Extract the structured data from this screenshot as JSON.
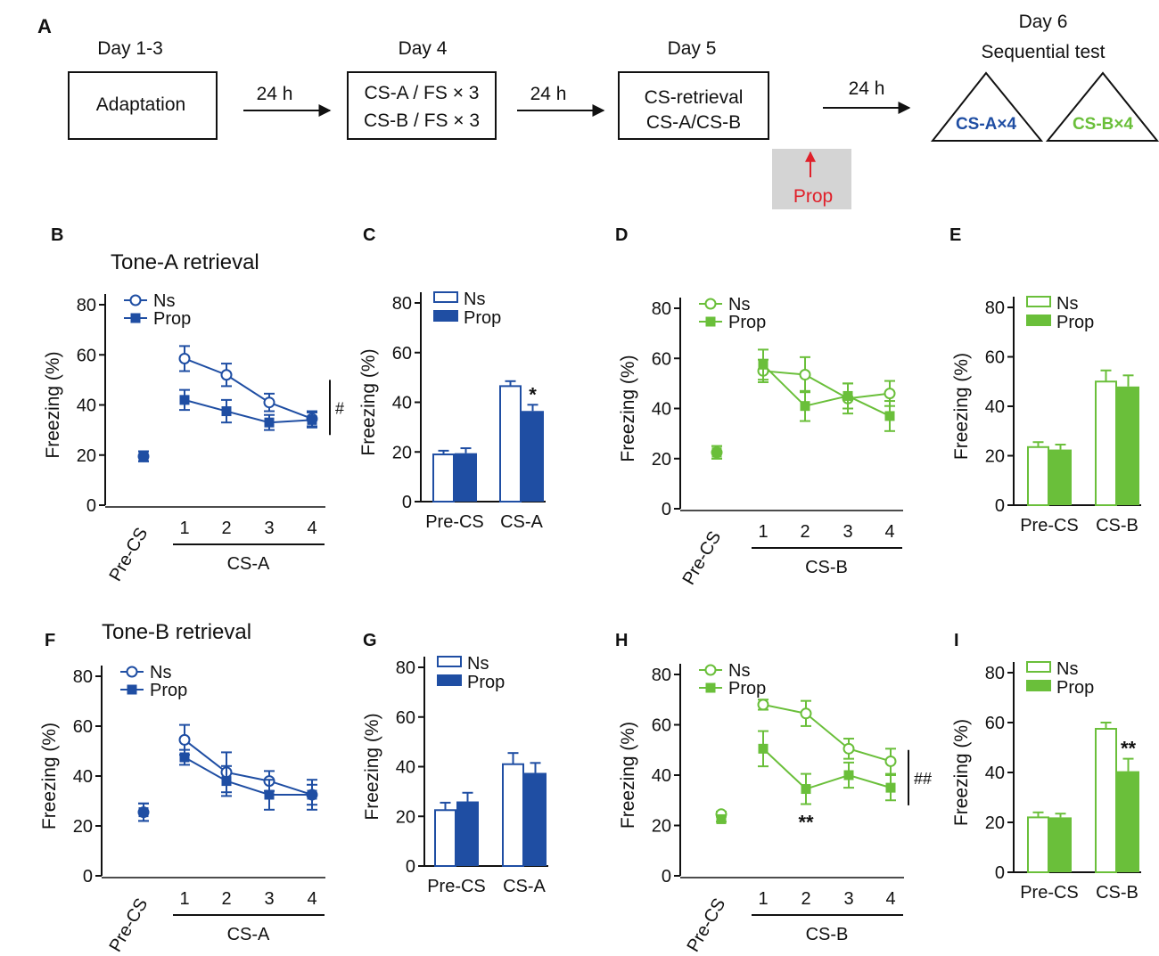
{
  "colors": {
    "blue": "#1f4ea3",
    "green": "#6abf3a",
    "red": "#e0202a",
    "grey_box": "#d4d4d4",
    "black": "#111111"
  },
  "schematic": {
    "panel_label": "A",
    "days": {
      "d13": "Day 1-3",
      "d4": "Day 4",
      "d5": "Day 5",
      "d6": "Day 6"
    },
    "boxes": {
      "adaptation": "Adaptation",
      "d4_line1": "CS-A / FS × 3",
      "d4_line2": "CS-B / FS × 3",
      "d5_line1": "CS-retrieval",
      "d5_line2": "CS-A/CS-B"
    },
    "intervals": [
      "24 h",
      "24 h",
      "24 h"
    ],
    "drug": "Prop",
    "test_title": "Sequential test",
    "test_a": "CS-A×4",
    "test_b": "CS-B×4"
  },
  "rows": {
    "tone_a": "Tone-A retrieval",
    "tone_b": "Tone-B retrieval"
  },
  "chart_data": [
    {
      "panel": "B",
      "type": "line",
      "title": "Tone-A retrieval",
      "ylabel": "Freezing (%)",
      "ylim": [
        0,
        80
      ],
      "yticks": [
        0,
        20,
        40,
        60,
        80
      ],
      "precs_label": "Pre-CS",
      "categories": [
        "1",
        "2",
        "3",
        "4"
      ],
      "group_label": "CS-A",
      "color": "blue",
      "sig": "#",
      "trial_marks": [],
      "series": [
        {
          "name": "Ns",
          "marker": "open-circle",
          "pre": 19.5,
          "pre_err": 2,
          "values": [
            58.5,
            52,
            41,
            34.5
          ],
          "errors": [
            5,
            4.5,
            3.5,
            3
          ]
        },
        {
          "name": "Prop",
          "marker": "filled-square",
          "pre": 19.5,
          "pre_err": 2,
          "values": [
            42,
            37.5,
            33,
            34
          ],
          "errors": [
            4,
            4.5,
            3,
            3
          ]
        }
      ]
    },
    {
      "panel": "C",
      "type": "bar",
      "ylabel": "Freezing (%)",
      "ylim": [
        0,
        80
      ],
      "yticks": [
        0,
        20,
        40,
        60,
        80
      ],
      "categories": [
        "Pre-CS",
        "CS-A"
      ],
      "color": "blue",
      "series": [
        {
          "name": "Ns",
          "style": "open",
          "values": [
            19,
            46.5
          ],
          "errors": [
            1.5,
            2
          ]
        },
        {
          "name": "Prop",
          "style": "filled",
          "values": [
            19.5,
            36.5
          ],
          "errors": [
            2,
            2.5
          ]
        }
      ],
      "stars": [
        "",
        "*"
      ]
    },
    {
      "panel": "D",
      "type": "line",
      "ylabel": "Freezing (%)",
      "ylim": [
        0,
        80
      ],
      "yticks": [
        0,
        20,
        40,
        60,
        80
      ],
      "precs_label": "Pre-CS",
      "categories": [
        "1",
        "2",
        "3",
        "4"
      ],
      "group_label": "CS-B",
      "color": "green",
      "sig": "",
      "trial_marks": [],
      "series": [
        {
          "name": "Ns",
          "marker": "open-circle",
          "pre": 22.5,
          "pre_err": 2.5,
          "values": [
            55,
            53.5,
            44,
            46
          ],
          "errors": [
            4.5,
            7,
            6,
            5
          ]
        },
        {
          "name": "Prop",
          "marker": "filled-square",
          "pre": 22.5,
          "pre_err": 2.5,
          "values": [
            57.5,
            41,
            45,
            37
          ],
          "errors": [
            6,
            6,
            5,
            6
          ]
        }
      ]
    },
    {
      "panel": "E",
      "type": "bar",
      "ylabel": "Freezing (%)",
      "ylim": [
        0,
        80
      ],
      "yticks": [
        0,
        20,
        40,
        60,
        80
      ],
      "categories": [
        "Pre-CS",
        "CS-B"
      ],
      "color": "green",
      "series": [
        {
          "name": "Ns",
          "style": "open",
          "values": [
            23.5,
            50
          ],
          "errors": [
            2,
            4.5
          ]
        },
        {
          "name": "Prop",
          "style": "filled",
          "values": [
            22.5,
            48
          ],
          "errors": [
            2,
            4.5
          ]
        }
      ],
      "stars": [
        "",
        ""
      ]
    },
    {
      "panel": "F",
      "type": "line",
      "title": "Tone-B retrieval",
      "ylabel": "Freezing (%)",
      "ylim": [
        0,
        80
      ],
      "yticks": [
        0,
        20,
        40,
        60,
        80
      ],
      "precs_label": "Pre-CS",
      "categories": [
        "1",
        "2",
        "3",
        "4"
      ],
      "group_label": "CS-A",
      "color": "blue",
      "sig": "",
      "trial_marks": [],
      "series": [
        {
          "name": "Ns",
          "marker": "open-circle",
          "pre": 25.5,
          "pre_err": 3.5,
          "values": [
            54.5,
            41.5,
            38,
            32.5
          ],
          "errors": [
            6,
            8,
            4,
            6
          ]
        },
        {
          "name": "Prop",
          "marker": "filled-square",
          "pre": 25.5,
          "pre_err": 3.5,
          "values": [
            47.5,
            38,
            32.5,
            32.5
          ],
          "errors": [
            3,
            6,
            6,
            4
          ]
        }
      ]
    },
    {
      "panel": "G",
      "type": "bar",
      "ylabel": "Freezing (%)",
      "ylim": [
        0,
        80
      ],
      "yticks": [
        0,
        20,
        40,
        60,
        80
      ],
      "categories": [
        "Pre-CS",
        "CS-A"
      ],
      "color": "blue",
      "series": [
        {
          "name": "Ns",
          "style": "open",
          "values": [
            22.5,
            41
          ],
          "errors": [
            3,
            4.5
          ]
        },
        {
          "name": "Prop",
          "style": "filled",
          "values": [
            26,
            37.5
          ],
          "errors": [
            3.5,
            4
          ]
        }
      ],
      "stars": [
        "",
        ""
      ]
    },
    {
      "panel": "H",
      "type": "line",
      "ylabel": "Freezing (%)",
      "ylim": [
        0,
        80
      ],
      "yticks": [
        0,
        20,
        40,
        60,
        80
      ],
      "precs_label": "Pre-CS",
      "categories": [
        "1",
        "2",
        "3",
        "4"
      ],
      "group_label": "CS-B",
      "color": "green",
      "sig": "##",
      "trial_marks": [
        "",
        "**",
        "",
        ""
      ],
      "series": [
        {
          "name": "Ns",
          "marker": "open-circle",
          "pre": 24.5,
          "pre_err": 1,
          "values": [
            68,
            64.5,
            50.5,
            45.5
          ],
          "errors": [
            2,
            5,
            4,
            5
          ]
        },
        {
          "name": "Prop",
          "marker": "filled-square",
          "pre": 22.5,
          "pre_err": 1,
          "values": [
            50.5,
            34.5,
            40,
            35
          ],
          "errors": [
            7,
            6,
            5,
            5
          ]
        }
      ]
    },
    {
      "panel": "I",
      "type": "bar",
      "ylabel": "Freezing (%)",
      "ylim": [
        0,
        80
      ],
      "yticks": [
        0,
        20,
        40,
        60,
        80
      ],
      "categories": [
        "Pre-CS",
        "CS-B"
      ],
      "color": "green",
      "series": [
        {
          "name": "Ns",
          "style": "open",
          "values": [
            22,
            57.5
          ],
          "errors": [
            2,
            2.5
          ]
        },
        {
          "name": "Prop",
          "style": "filled",
          "values": [
            22,
            40.5
          ],
          "errors": [
            1.5,
            5
          ]
        }
      ],
      "stars": [
        "",
        "**"
      ]
    }
  ]
}
